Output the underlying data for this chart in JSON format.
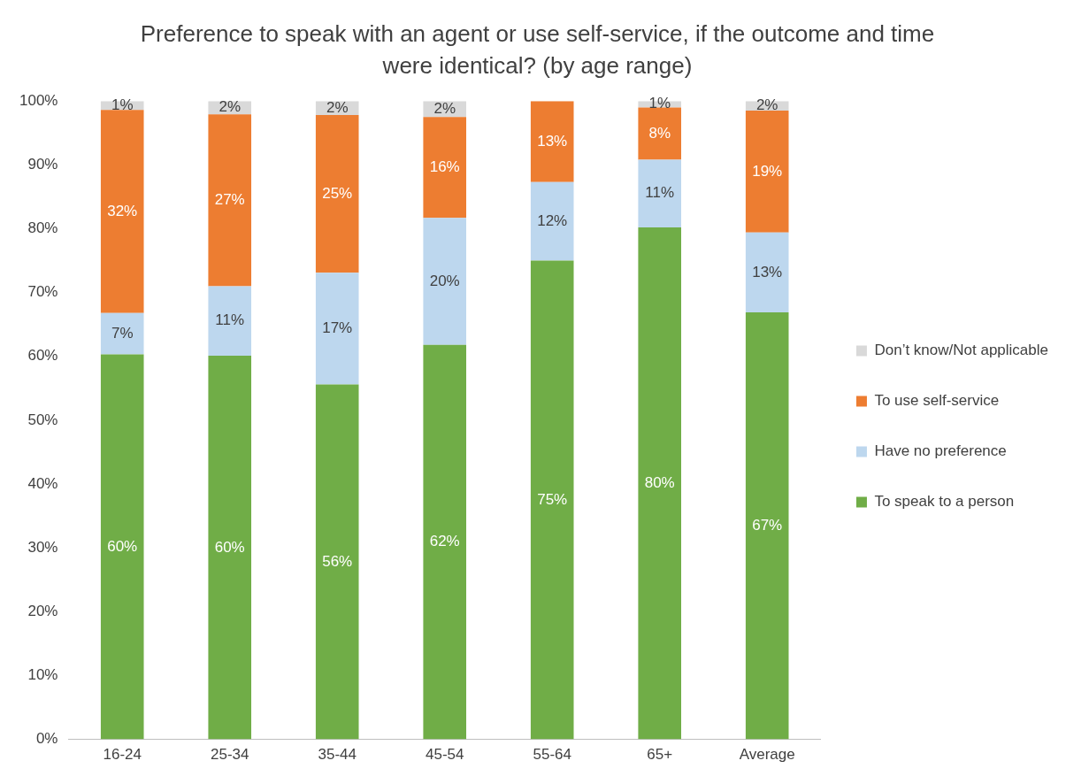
{
  "chart_data": {
    "type": "bar",
    "title": "Preference to speak with an agent or use self-service, if the outcome and time were identical? (by age range)",
    "categories": [
      "16-24",
      "25-34",
      "35-44",
      "45-54",
      "55-64",
      "65+",
      "Average"
    ],
    "series": [
      {
        "name": "To speak to a person",
        "color": "#70ad47",
        "values": [
          60.3,
          60.1,
          55.6,
          61.8,
          75.0,
          80.2,
          66.9
        ],
        "value_labels": [
          "60%",
          "60%",
          "56%",
          "62%",
          "75%",
          "80%",
          "67%"
        ]
      },
      {
        "name": "Have no preference",
        "color": "#bdd7ee",
        "values": [
          6.5,
          10.9,
          17.5,
          19.9,
          12.3,
          10.6,
          12.5
        ],
        "value_labels": [
          "7%",
          "11%",
          "17%",
          "20%",
          "12%",
          "11%",
          "13%"
        ]
      },
      {
        "name": "To use self-service",
        "color": "#ed7d31",
        "values": [
          31.8,
          26.9,
          24.7,
          15.8,
          12.7,
          8.2,
          19.1
        ],
        "value_labels": [
          "32%",
          "27%",
          "25%",
          "16%",
          "13%",
          "8%",
          "19%"
        ]
      },
      {
        "name": "Don’t know/Not applicable",
        "color": "#d9d9d9",
        "values": [
          1.4,
          2.1,
          2.2,
          2.5,
          null,
          1.0,
          1.5
        ],
        "value_labels": [
          "1%",
          "2%",
          "2%",
          "2%",
          null,
          "1%",
          "2%"
        ]
      }
    ],
    "stacked": true,
    "legend": "right",
    "grid": false,
    "ylim": [
      0,
      100
    ],
    "yticks": [
      {
        "value": 0,
        "label": "0%"
      },
      {
        "value": 10,
        "label": "10%"
      },
      {
        "value": 20,
        "label": "20%"
      },
      {
        "value": 30,
        "label": "30%"
      },
      {
        "value": 40,
        "label": "40%"
      },
      {
        "value": 50,
        "label": "50%"
      },
      {
        "value": 60,
        "label": "60%"
      },
      {
        "value": 70,
        "label": "70%"
      },
      {
        "value": 80,
        "label": "80%"
      },
      {
        "value": 90,
        "label": "90%"
      },
      {
        "value": 100,
        "label": "100%"
      }
    ]
  }
}
